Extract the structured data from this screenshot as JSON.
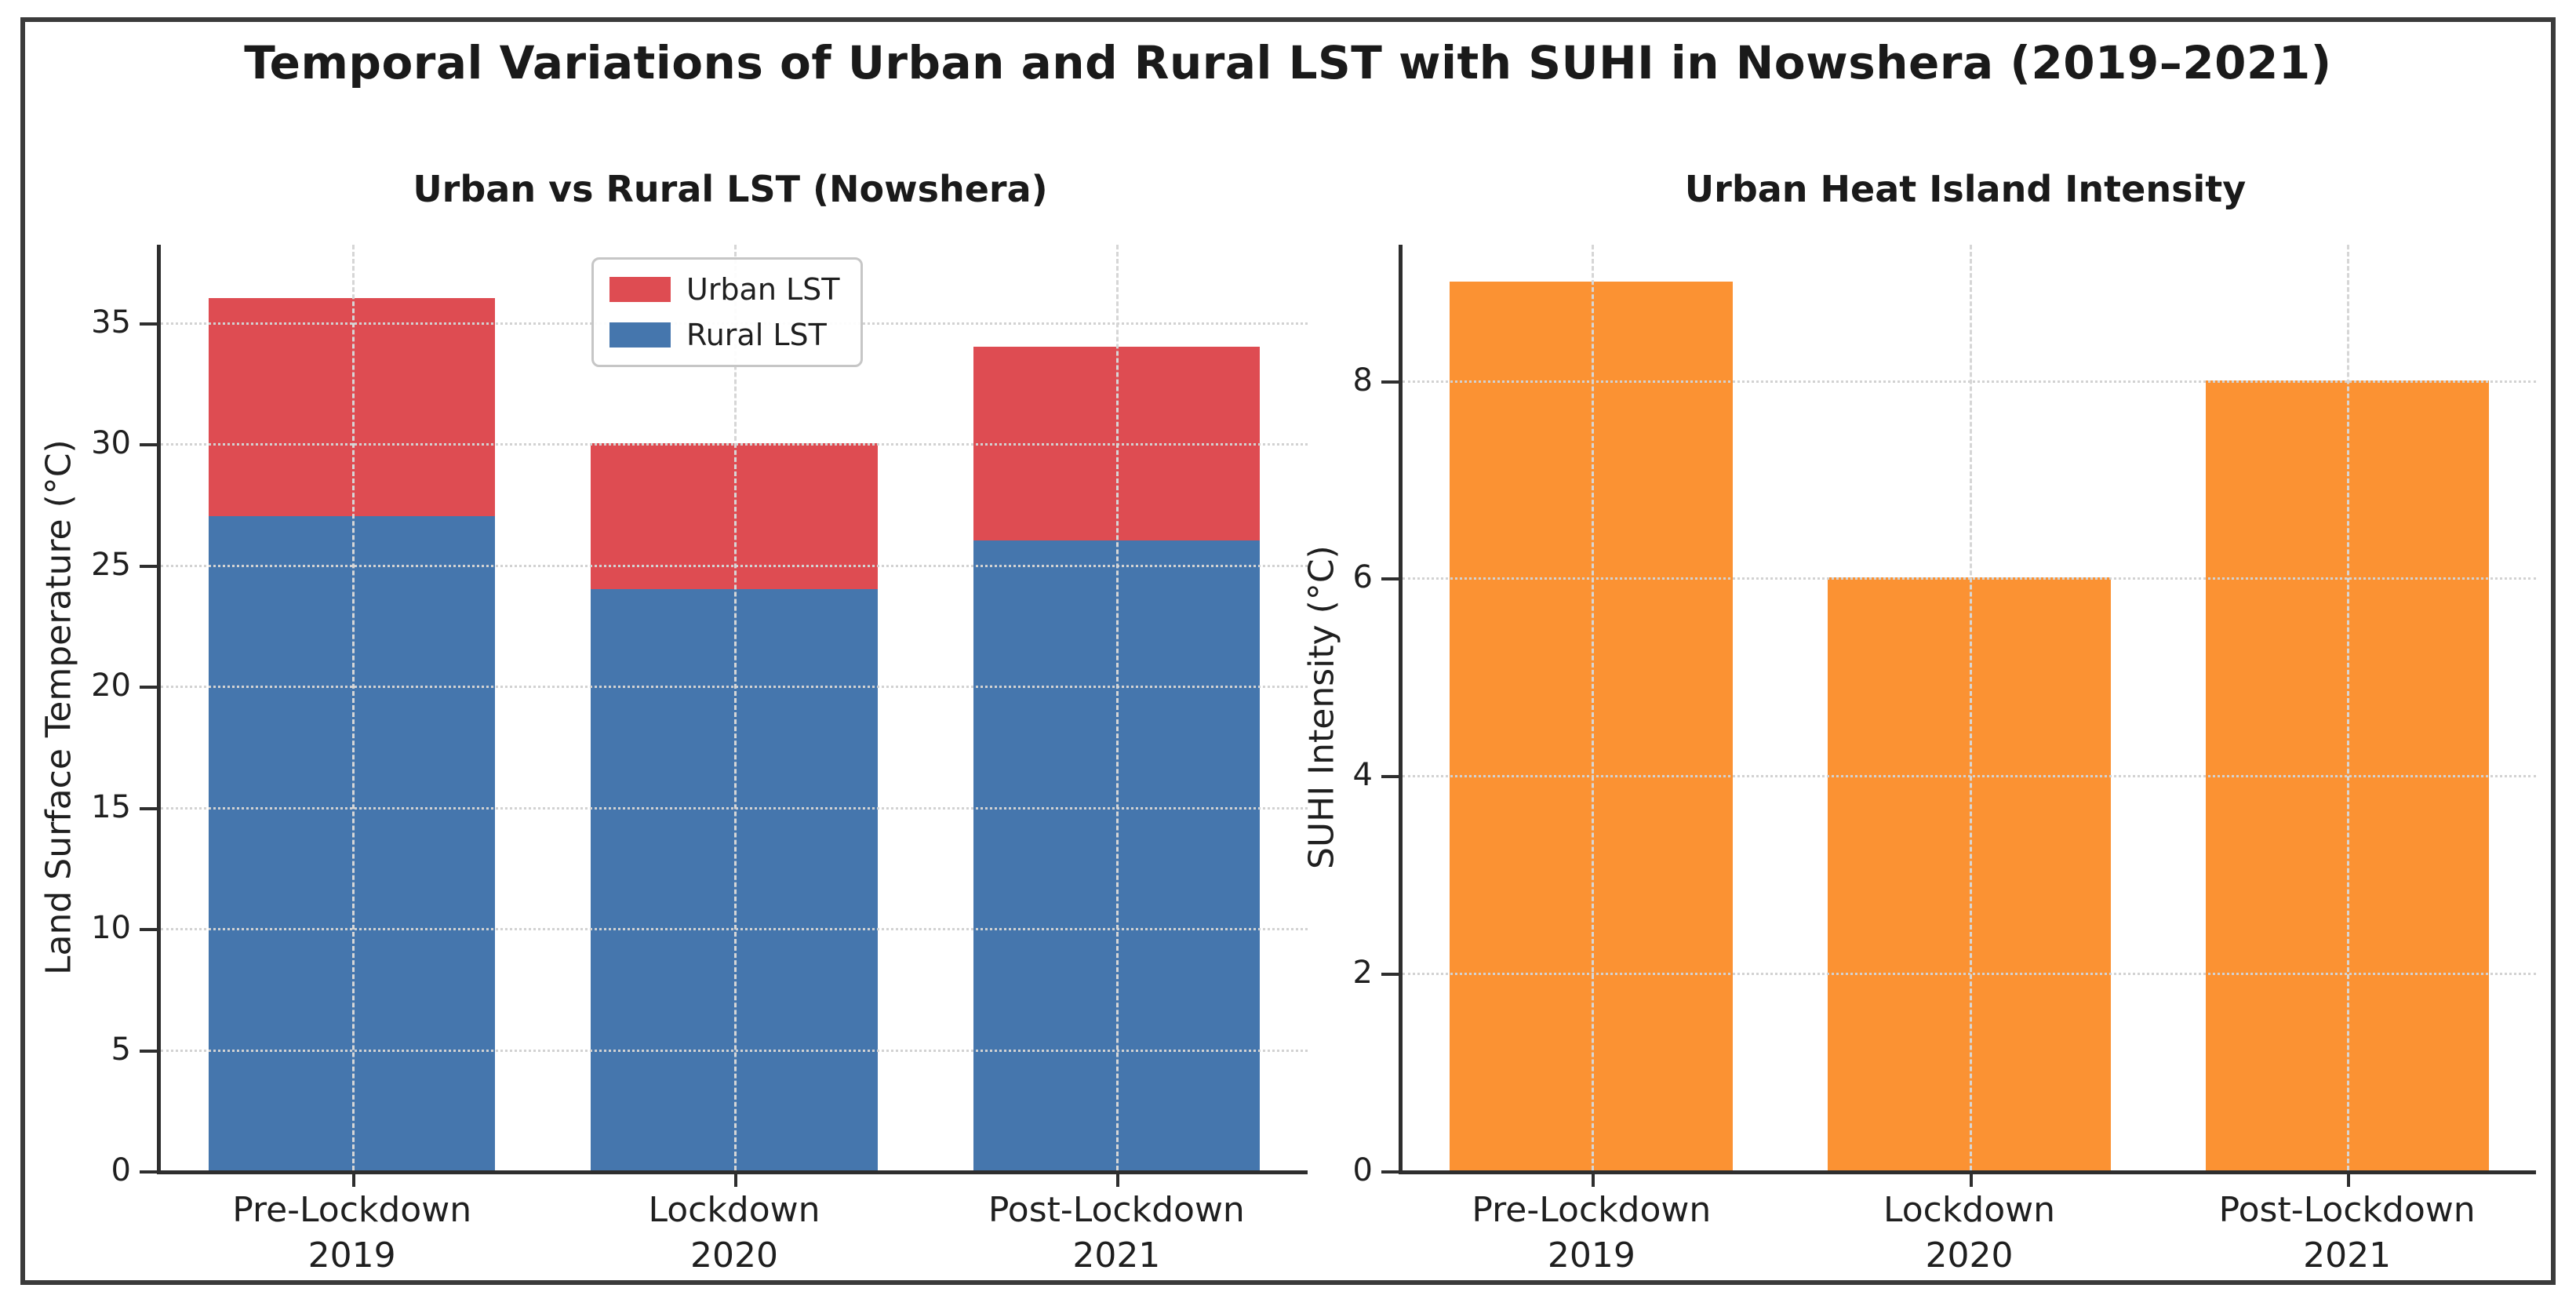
{
  "figure": {
    "title": "Temporal Variations of Urban and Rural LST with SUHI in Nowshera (2019–2021)"
  },
  "colors": {
    "urban_red": "#de4c52",
    "rural_blue": "#4576ad",
    "suhi_orange": "#fb9233",
    "grid": "#d4d4d4",
    "spine": "#2e2e2e",
    "frame": "#3b3b3b",
    "text": "#1f1f1f"
  },
  "chart_data": [
    {
      "type": "bar",
      "variant": "overlay",
      "title": "Urban vs Rural LST (Nowshera)",
      "ylabel": "Land Surface Temperature (°C)",
      "xlabel": "",
      "categories": [
        "Pre-Lockdown 2019",
        "Lockdown 2020",
        "Post-Lockdown 2021"
      ],
      "category_lines": [
        [
          "Pre-Lockdown",
          "2019"
        ],
        [
          "Lockdown",
          "2020"
        ],
        [
          "Post-Lockdown",
          "2021"
        ]
      ],
      "yticks": [
        0,
        5,
        10,
        15,
        20,
        25,
        30,
        35
      ],
      "ylim": [
        0,
        38.2
      ],
      "grid": true,
      "legend_position": "upper center",
      "series": [
        {
          "name": "Urban LST",
          "color": "#de4c52",
          "values": [
            36,
            30,
            34
          ]
        },
        {
          "name": "Rural LST",
          "color": "#4576ad",
          "values": [
            27,
            24,
            26
          ]
        }
      ]
    },
    {
      "type": "bar",
      "variant": "simple",
      "title": "Urban Heat Island Intensity",
      "ylabel": "SUHI Intensity (°C)",
      "xlabel": "",
      "categories": [
        "Pre-Lockdown 2019",
        "Lockdown 2020",
        "Post-Lockdown 2021"
      ],
      "category_lines": [
        [
          "Pre-Lockdown",
          "2019"
        ],
        [
          "Lockdown",
          "2020"
        ],
        [
          "Post-Lockdown",
          "2021"
        ]
      ],
      "yticks": [
        0,
        2,
        4,
        6,
        8
      ],
      "ylim": [
        0,
        9.37
      ],
      "grid": true,
      "legend_position": "none",
      "series": [
        {
          "name": "SUHI Intensity",
          "color": "#fb9233",
          "values": [
            9,
            6,
            8
          ]
        }
      ]
    }
  ]
}
